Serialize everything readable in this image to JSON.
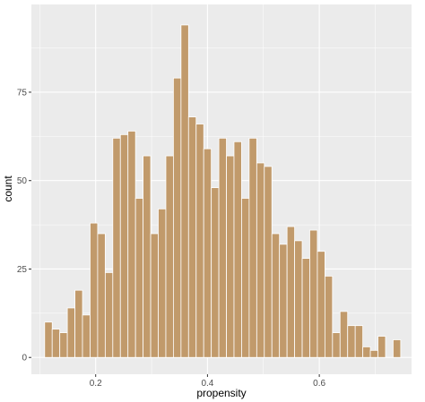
{
  "chart_data": {
    "type": "bar",
    "subtype": "histogram",
    "xlabel": "propensity",
    "ylabel": "count",
    "xlim": [
      0.085,
      0.765
    ],
    "ylim": [
      -4.75,
      99.8
    ],
    "x_ticks": [
      0.2,
      0.4,
      0.6
    ],
    "x_tick_labels": [
      "0.2",
      "0.4",
      "0.6"
    ],
    "y_ticks": [
      0,
      25,
      50,
      75
    ],
    "y_tick_labels": [
      "0",
      "25",
      "50",
      "75"
    ],
    "bin_width": 0.01355,
    "bin_centers": [
      0.1155,
      0.129,
      0.1426,
      0.1561,
      0.1697,
      0.1832,
      0.1968,
      0.2103,
      0.2239,
      0.2374,
      0.251,
      0.2645,
      0.2781,
      0.2916,
      0.3052,
      0.3187,
      0.3323,
      0.3458,
      0.3594,
      0.3729,
      0.3865,
      0.4,
      0.4136,
      0.4271,
      0.4407,
      0.4542,
      0.4678,
      0.4813,
      0.4949,
      0.5084,
      0.522,
      0.5355,
      0.5491,
      0.5626,
      0.5762,
      0.5897,
      0.6033,
      0.6168,
      0.6304,
      0.6439,
      0.6575,
      0.671,
      0.6846,
      0.6981,
      0.7117,
      0.7252,
      0.7388
    ],
    "values": [
      10,
      8,
      7,
      14,
      19,
      12,
      38,
      35,
      24,
      62,
      63,
      64,
      45,
      57,
      35,
      42,
      57,
      79,
      94,
      68,
      66,
      59,
      48,
      62,
      57,
      61,
      45,
      62,
      55,
      54,
      35,
      32,
      37,
      33,
      28,
      36,
      30,
      23,
      7,
      13,
      9,
      9,
      3,
      2,
      6,
      0,
      5
    ],
    "bar_fill": "#c19a6b",
    "bar_outline": "#ffffff",
    "panel_background": "#ebebeb",
    "grid": true,
    "grid_color": "#ffffff"
  }
}
